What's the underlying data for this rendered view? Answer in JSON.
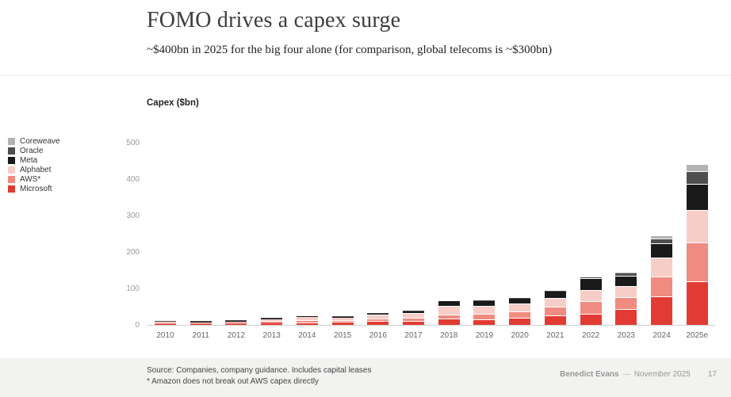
{
  "slide": {
    "title": "FOMO drives a capex surge",
    "subtitle": "~$400bn in 2025 for the big four alone (for comparison, global telecoms is ~$300bn)",
    "chart_label": "Capex ($bn)"
  },
  "footer": {
    "source_line1": "Source: Companies, company guidance. Includes capital leases",
    "source_line2": "* Amazon does not break out AWS capex directly",
    "author": "Benedict Evans",
    "separator": "––",
    "date": "November 2025",
    "page": "17"
  },
  "chart_data": {
    "type": "bar",
    "stacked": true,
    "title": "Capex ($bn)",
    "legend_position": "left",
    "grid": false,
    "ylim": [
      0,
      500
    ],
    "y_ticks": [
      0,
      100,
      200,
      300,
      400,
      500
    ],
    "categories": [
      "2010",
      "2011",
      "2012",
      "2013",
      "2014",
      "2015",
      "2016",
      "2017",
      "2018",
      "2019",
      "2020",
      "2021",
      "2022",
      "2023",
      "2024",
      "2025e"
    ],
    "series": [
      {
        "name": "Microsoft",
        "color": "#e23b33",
        "values": [
          2.0,
          2.3,
          2.8,
          4.3,
          5.3,
          5.9,
          8.6,
          8.1,
          14.2,
          13.9,
          17.6,
          23.2,
          28.1,
          41.2,
          75.6,
          118
        ]
      },
      {
        "name": "AWS*",
        "color": "#ef8b80",
        "values": [
          1.0,
          1.8,
          2.7,
          3.8,
          4.9,
          4.6,
          6.7,
          10.0,
          11.3,
          13.4,
          17.0,
          25.0,
          35.0,
          32.0,
          55.0,
          105
        ]
      },
      {
        "name": "Alphabet",
        "color": "#f7cdc7",
        "values": [
          4.0,
          3.4,
          3.3,
          7.4,
          11.0,
          9.9,
          10.2,
          13.2,
          25.1,
          23.5,
          22.3,
          24.6,
          31.5,
          32.3,
          52.5,
          91
        ]
      },
      {
        "name": "Meta",
        "color": "#1a1a1a",
        "values": [
          0.3,
          0.6,
          1.2,
          1.4,
          1.8,
          2.5,
          4.5,
          6.7,
          13.9,
          15.1,
          15.7,
          18.6,
          31.4,
          28.1,
          39.2,
          70
        ]
      },
      {
        "name": "Oracle",
        "color": "#4f4f4f",
        "values": [
          0.2,
          0.4,
          0.6,
          0.6,
          0.6,
          1.0,
          1.2,
          2.0,
          1.7,
          1.6,
          1.6,
          2.1,
          4.5,
          8.7,
          12.0,
          35
        ]
      },
      {
        "name": "Coreweave",
        "color": "#b3b3b3",
        "values": [
          0,
          0,
          0,
          0,
          0,
          0,
          0,
          0,
          0,
          0,
          0,
          0,
          0,
          1.0,
          9.0,
          20
        ]
      }
    ]
  }
}
